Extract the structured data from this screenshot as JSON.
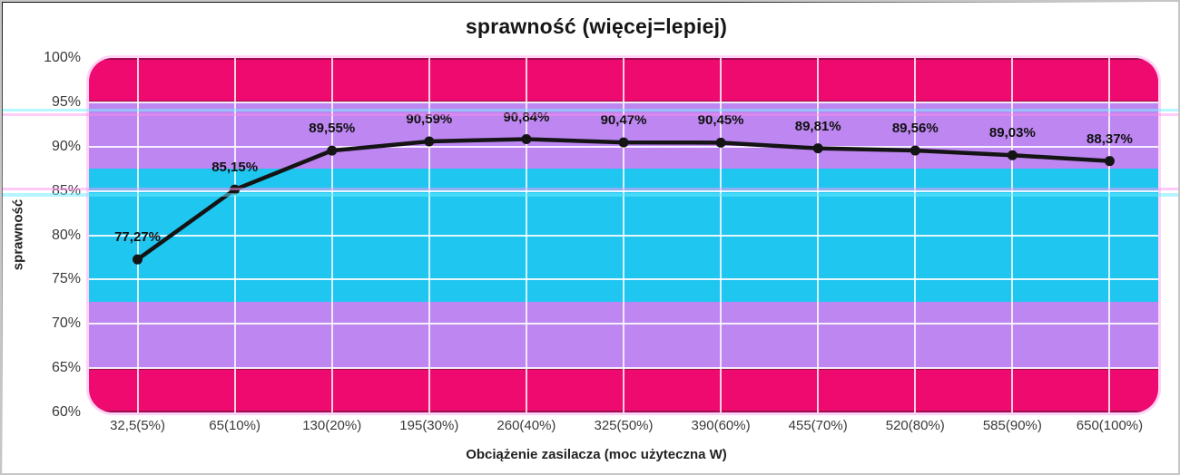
{
  "chart_data": {
    "type": "line",
    "title": "sprawność (więcej=lepiej)",
    "xlabel": "Obciążenie zasilacza (moc użyteczna W)",
    "ylabel": "sprawność",
    "categories": [
      "32,5(5%)",
      "65(10%)",
      "130(20%)",
      "195(30%)",
      "260(40%)",
      "325(50%)",
      "390(60%)",
      "455(70%)",
      "520(80%)",
      "585(90%)",
      "650(100%)"
    ],
    "values": [
      77.27,
      85.15,
      89.55,
      90.59,
      90.84,
      90.47,
      90.45,
      89.81,
      89.56,
      89.03,
      88.37
    ],
    "point_labels": [
      "77,27%",
      "85,15%",
      "89,55%",
      "90,59%",
      "90,84%",
      "90,47%",
      "90,45%",
      "89,81%",
      "89,56%",
      "89,03%",
      "88,37%"
    ],
    "ylim": [
      60,
      100
    ],
    "y_tick_values": [
      100,
      95,
      90,
      85,
      80,
      75,
      70,
      65,
      60
    ],
    "y_ticks": [
      "100%",
      "95%",
      "90%",
      "85%",
      "80%",
      "75%",
      "70%",
      "65%",
      "60%"
    ],
    "grid": true,
    "legend": "none",
    "line_color": "#141414",
    "point_color": "#141414",
    "bands": [
      {
        "from": 95,
        "to": 100,
        "color": "#ee0a6e",
        "edge": "#9d0d51"
      },
      {
        "from": 87.5,
        "to": 95,
        "color": "#bd86f1"
      },
      {
        "from": 72.5,
        "to": 87.5,
        "color": "#1fc6f0"
      },
      {
        "from": 65,
        "to": 72.5,
        "color": "#bd86f1"
      },
      {
        "from": 60,
        "to": 65,
        "color": "#ee0a6e",
        "edge": "#9d0d51"
      }
    ]
  }
}
